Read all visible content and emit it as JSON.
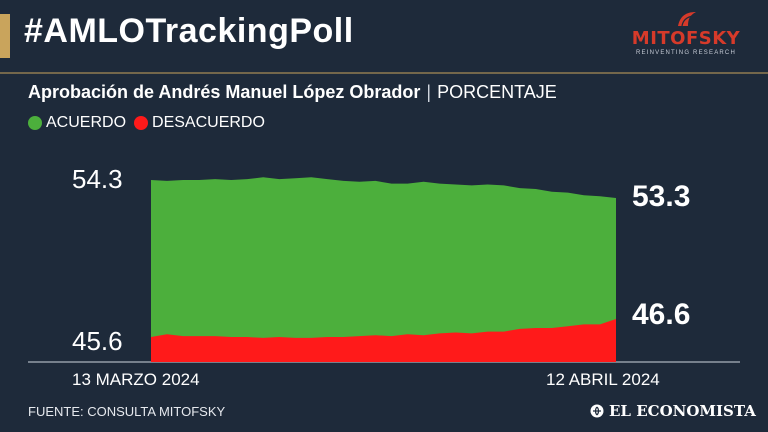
{
  "header": {
    "title": "#AMLOTrackingPoll",
    "logo_text": "MITOFSKY",
    "logo_tagline": "REINVENTING RESEARCH"
  },
  "subtitle": {
    "bold": "Aprobación de Andrés Manuel López Obrador",
    "separator": "|",
    "light": "PORCENTAJE"
  },
  "legend": [
    {
      "label": "ACUERDO",
      "color": "#4caf3c"
    },
    {
      "label": "DESACUERDO",
      "color": "#ff1a1a"
    }
  ],
  "chart_data": {
    "type": "area",
    "x_start_label": "13 MARZO 2024",
    "x_end_label": "12 ABRIL 2024",
    "y_top_label": "54.3",
    "y_bottom_label": "45.6",
    "end_values": {
      "acuerdo": "53.3",
      "desacuerdo": "46.6"
    },
    "ylim": [
      45.6,
      54.3
    ],
    "series": [
      {
        "name": "ACUERDO",
        "color": "#4caf3c",
        "values": [
          54.3,
          54.25,
          54.3,
          54.3,
          54.35,
          54.3,
          54.35,
          54.45,
          54.35,
          54.4,
          54.45,
          54.35,
          54.25,
          54.2,
          54.25,
          54.1,
          54.1,
          54.2,
          54.1,
          54.05,
          54.0,
          54.05,
          54.0,
          53.85,
          53.8,
          53.65,
          53.6,
          53.45,
          53.4,
          53.3
        ]
      },
      {
        "name": "DESACUERDO",
        "color": "#ff1a1a",
        "values": [
          45.6,
          45.75,
          45.65,
          45.65,
          45.65,
          45.6,
          45.6,
          45.55,
          45.6,
          45.55,
          45.55,
          45.6,
          45.6,
          45.65,
          45.7,
          45.65,
          45.75,
          45.7,
          45.8,
          45.85,
          45.8,
          45.9,
          45.9,
          46.05,
          46.1,
          46.1,
          46.2,
          46.3,
          46.3,
          46.6
        ]
      }
    ]
  },
  "footer": {
    "source": "FUENTE: CONSULTA MITOFSKY",
    "brand": "EL ECONOMISTA"
  }
}
